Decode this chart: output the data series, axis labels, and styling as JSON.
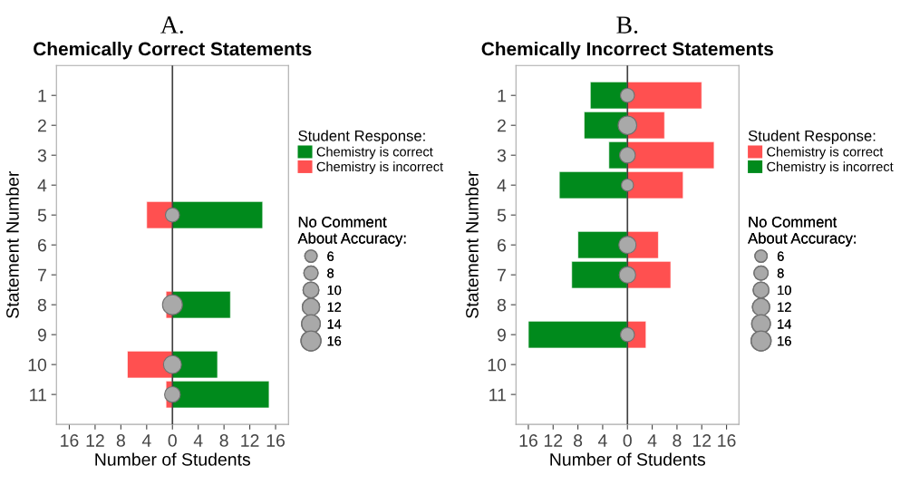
{
  "chart_data": [
    {
      "type": "bar",
      "orientation": "horizontal",
      "stacked": true,
      "title": "A.",
      "subtitle": "Chemically Correct Statements",
      "xlabel": "Number of Students",
      "ylabel": "Statement Number",
      "legend_title": "Student Response:",
      "legend": "right",
      "categories": [
        "1",
        "2",
        "3",
        "4",
        "5",
        "6",
        "7",
        "8",
        "9",
        "10",
        "11"
      ],
      "xlim": [
        -18,
        18
      ],
      "xticks": [
        {
          "value": -16,
          "label": "16"
        },
        {
          "value": -12,
          "label": "12"
        },
        {
          "value": -8,
          "label": "8"
        },
        {
          "value": -4,
          "label": "4"
        },
        0,
        4,
        8,
        12,
        16
      ],
      "ref_lines": [
        {
          "axis": "x",
          "value": 0,
          "color": "#404040"
        }
      ],
      "size_legend": [
        6,
        8,
        10,
        12,
        14,
        16
      ],
      "annotations": [
        "No Comment\nAbout Accuracy:"
      ],
      "series": [
        {
          "name": "Chemistry is correct",
          "color": "#008a1c",
          "values": [
            null,
            null,
            null,
            null,
            14,
            null,
            null,
            9,
            null,
            7,
            15
          ]
        },
        {
          "name": "Chemistry is incorrect",
          "color": "#ff5050",
          "values": [
            null,
            null,
            null,
            null,
            -4,
            null,
            null,
            -1,
            null,
            -7,
            -1
          ]
        },
        {
          "type": "bubble",
          "color": "#a9a9a9",
          "values": [
            null,
            null,
            null,
            null,
            0,
            null,
            null,
            0,
            null,
            0,
            0
          ],
          "sizes": [
            null,
            null,
            null,
            null,
            8,
            null,
            null,
            16,
            null,
            13,
            10
          ]
        }
      ]
    },
    {
      "type": "bar",
      "orientation": "horizontal",
      "stacked": true,
      "title": "B.",
      "subtitle": "Chemically Incorrect Statements",
      "xlabel": "Number of Students",
      "ylabel": "Statement Number",
      "legend_title": "Student Response:",
      "legend": "right",
      "categories": [
        "1",
        "2",
        "3",
        "4",
        "5",
        "6",
        "7",
        "8",
        "9",
        "10",
        "11"
      ],
      "xlim": [
        -18,
        18
      ],
      "xticks": [
        {
          "value": -16,
          "label": "16"
        },
        {
          "value": -12,
          "label": "12"
        },
        {
          "value": -8,
          "label": "8"
        },
        {
          "value": -4,
          "label": "4"
        },
        0,
        4,
        8,
        12,
        16
      ],
      "ref_lines": [
        {
          "axis": "x",
          "value": 0,
          "color": "#404040"
        }
      ],
      "size_legend": [
        6,
        8,
        10,
        12,
        14,
        16
      ],
      "annotations": [
        "No Comment\nAbout Accuracy:"
      ],
      "series": [
        {
          "name": "Chemistry is correct",
          "color": "#ff5050",
          "values": [
            12,
            6,
            14,
            9,
            null,
            5,
            7,
            null,
            3,
            null,
            null
          ]
        },
        {
          "name": "Chemistry is incorrect",
          "color": "#008a1c",
          "values": [
            -6,
            -7,
            -3,
            -11,
            null,
            -8,
            -9,
            null,
            -16,
            null,
            null
          ]
        },
        {
          "type": "bubble",
          "color": "#a9a9a9",
          "values": [
            0,
            0,
            0,
            0,
            null,
            0,
            0,
            null,
            0,
            null,
            null
          ],
          "sizes": [
            8,
            14,
            10,
            6,
            null,
            12,
            11,
            null,
            8,
            null,
            null
          ]
        }
      ]
    }
  ]
}
